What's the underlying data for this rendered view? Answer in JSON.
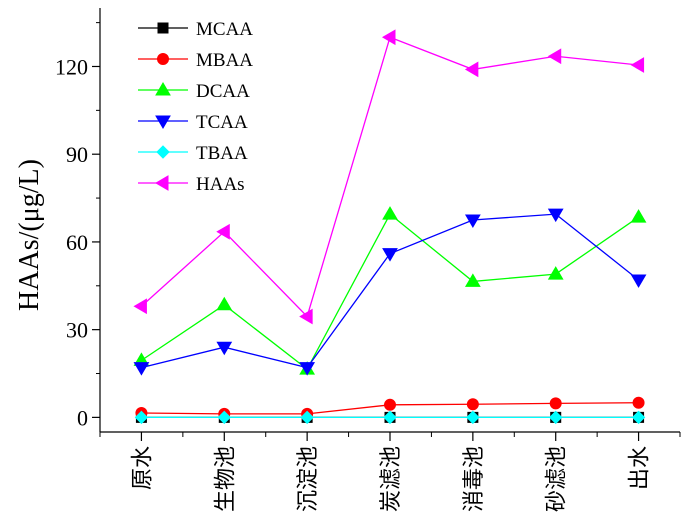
{
  "chart_data": {
    "type": "line",
    "categories": [
      "原水",
      "生物池",
      "沉淀池",
      "炭滤池",
      "消毒池",
      "砂滤池",
      "出水"
    ],
    "ylabel": "HAAs/(μg/L)",
    "xlabel": "",
    "ylim": [
      -5,
      140
    ],
    "yticks": [
      0,
      30,
      60,
      90,
      120
    ],
    "legend_position": "top-left",
    "series": [
      {
        "name": "MCAA",
        "color": "#000000",
        "marker": "square",
        "values": [
          0,
          0,
          0,
          0,
          0,
          0,
          0
        ]
      },
      {
        "name": "MBAA",
        "color": "#ff0000",
        "marker": "circle",
        "values": [
          1.5,
          1.2,
          1.2,
          4.3,
          4.5,
          4.8,
          5.0
        ]
      },
      {
        "name": "DCAA",
        "color": "#00ff00",
        "marker": "triangle-up",
        "values": [
          19.5,
          38.5,
          16.5,
          69.5,
          46.5,
          49.0,
          68.5
        ]
      },
      {
        "name": "TCAA",
        "color": "#0000ff",
        "marker": "triangle-down",
        "values": [
          17.0,
          24.0,
          17.0,
          56.0,
          67.5,
          69.5,
          47.0
        ]
      },
      {
        "name": "TBAA",
        "color": "#00ffff",
        "marker": "diamond",
        "values": [
          0,
          0,
          0,
          0,
          0,
          0,
          0
        ]
      },
      {
        "name": "HAAs",
        "color": "#ff00ff",
        "marker": "triangle-left",
        "values": [
          38.0,
          63.5,
          34.5,
          130.0,
          119.0,
          123.5,
          120.5
        ]
      }
    ]
  }
}
